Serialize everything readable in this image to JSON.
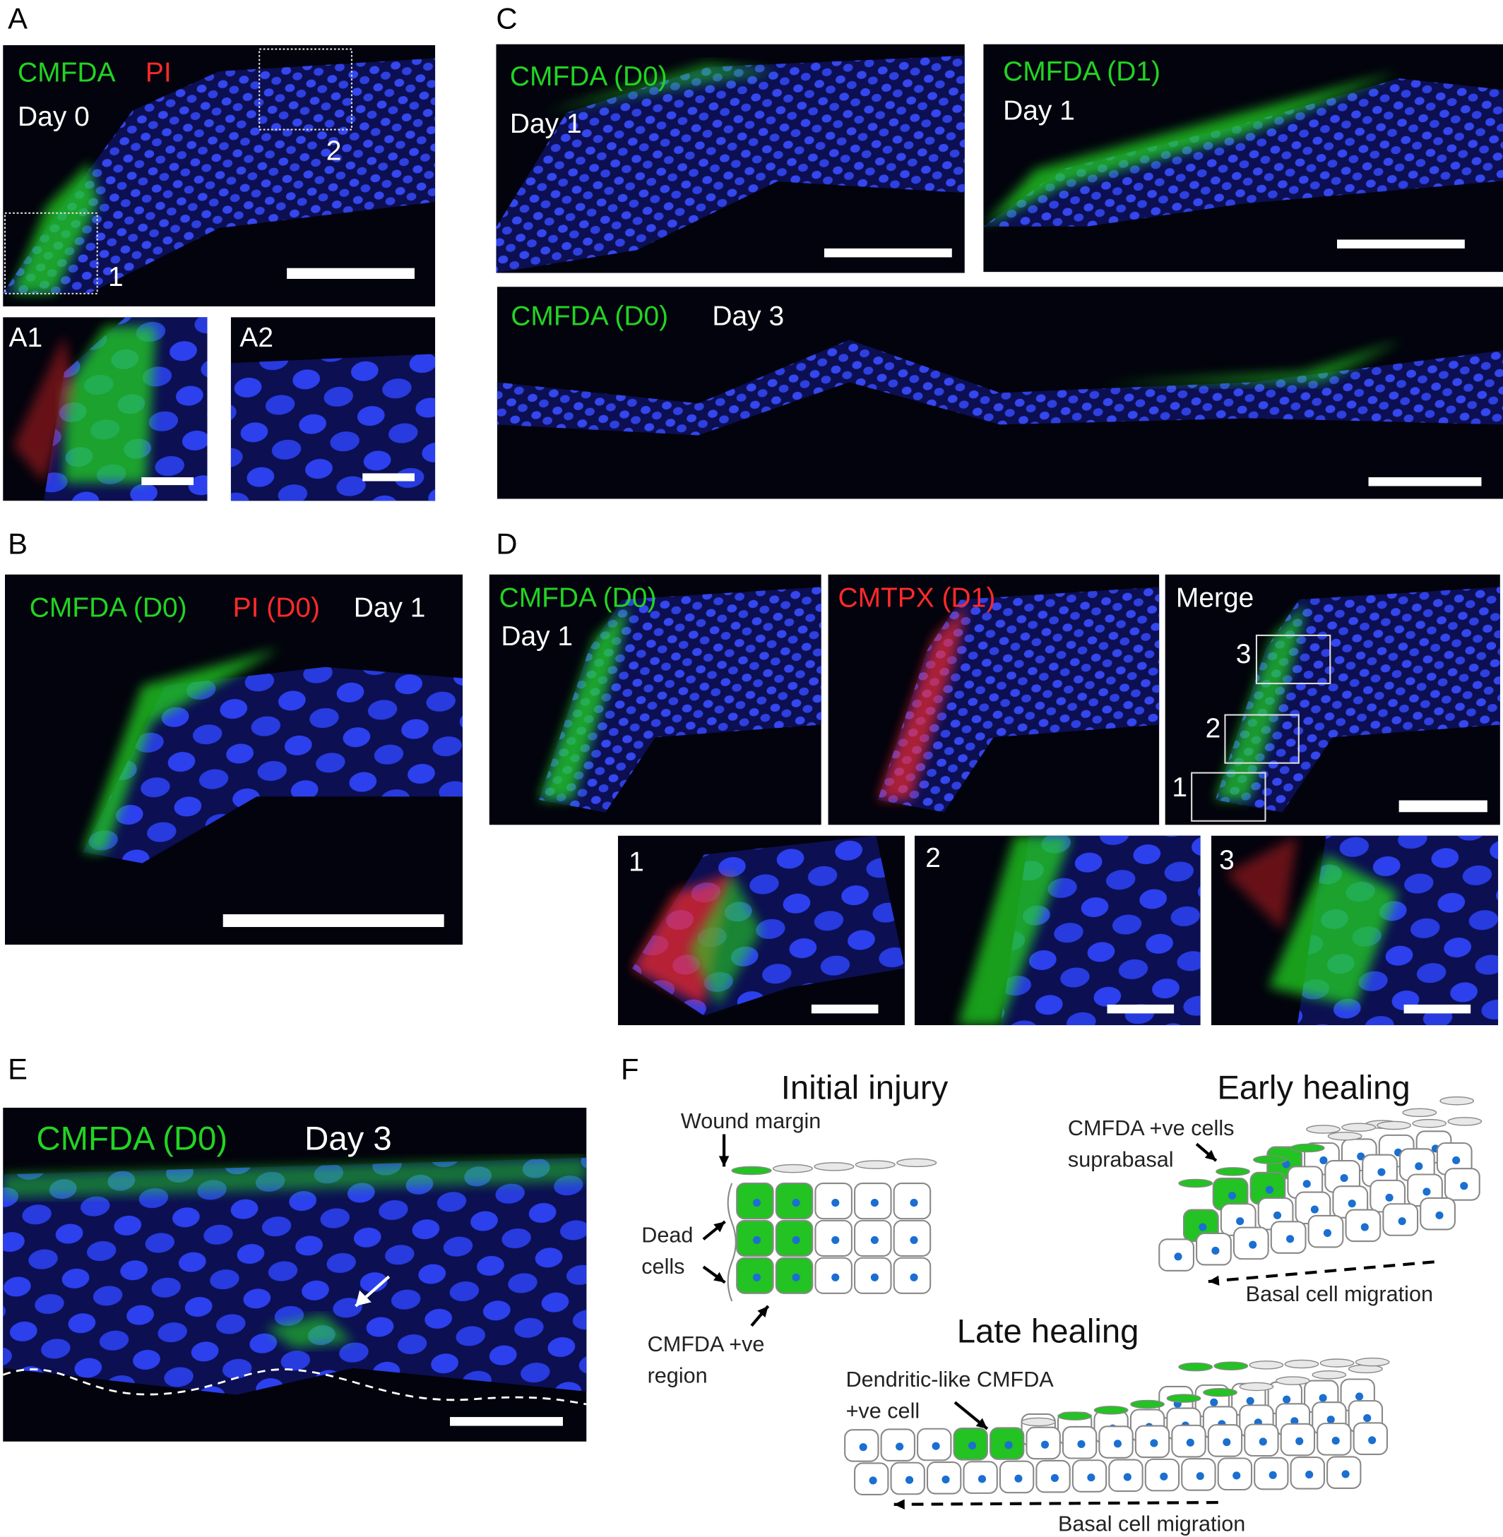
{
  "colors": {
    "nuclei": "#2a3cff",
    "cmfda": "#22d422",
    "red_dye": "#ff2a2a",
    "background": "#000000",
    "cell_outline": "#888888",
    "nucleus_dot": "#1a6fd0"
  },
  "panels": {
    "A": {
      "label": "A",
      "cmfda": "CMFDA",
      "pi": "PI",
      "day": "Day 0",
      "box1": "1",
      "box2": "2",
      "inset1": "A1",
      "inset2": "A2"
    },
    "B": {
      "label": "B",
      "cmfda": "CMFDA (D0)",
      "pi": "PI (D0)",
      "day": "Day 1"
    },
    "C": {
      "label": "C",
      "c1_dye": "CMFDA (D0)",
      "c1_day": "Day 1",
      "c2_dye": "CMFDA (D1)",
      "c2_day": "Day 1",
      "c3_dye": "CMFDA (D0)",
      "c3_day": "Day 3"
    },
    "D": {
      "label": "D",
      "d1_dye": "CMFDA (D0)",
      "d1_day": "Day 1",
      "d2_dye": "CMTPX (D1)",
      "d3": "Merge",
      "box1": "1",
      "box2": "2",
      "box3": "3",
      "inset1": "1",
      "inset2": "2",
      "inset3": "3"
    },
    "E": {
      "label": "E",
      "dye": "CMFDA (D0)",
      "day": "Day 3"
    },
    "F": {
      "label": "F",
      "initial": {
        "title": "Initial injury",
        "wound_margin": "Wound margin",
        "dead1": "Dead",
        "dead2": "cells",
        "region1": "CMFDA +ve",
        "region2": "region"
      },
      "early": {
        "title": "Early healing",
        "cells1": "CMFDA +ve cells",
        "cells2": "suprabasal",
        "migration": "Basal cell migration"
      },
      "late": {
        "title": "Late healing",
        "dend1": "Dendritic-like CMFDA",
        "dend2": "+ve cell",
        "migration": "Basal cell migration"
      }
    }
  }
}
